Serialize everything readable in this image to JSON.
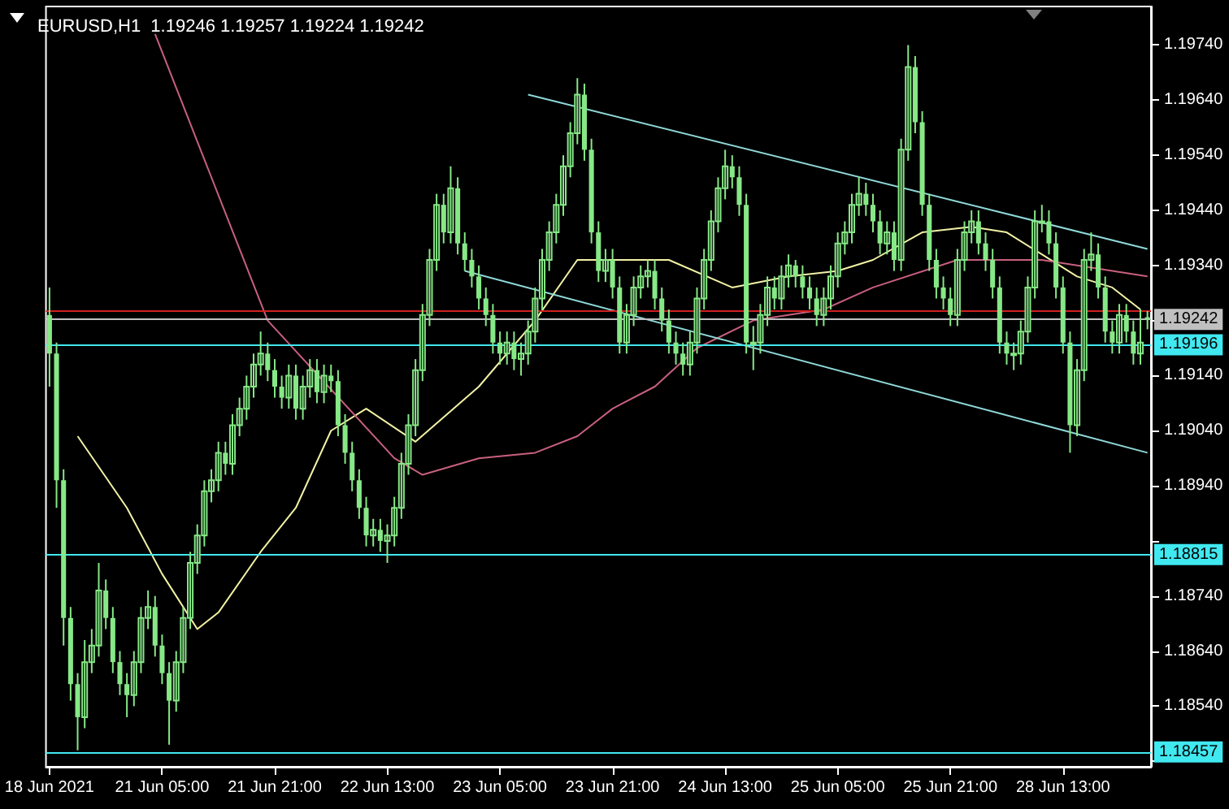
{
  "chart_data": {
    "type": "candlestick",
    "title": "EURUSD,H1  1.19246 1.19257 1.19224 1.19242",
    "color": "#86e886",
    "categories": [
      "18 Jun 2021",
      null,
      null,
      null,
      null,
      null,
      null,
      null,
      null,
      null,
      null,
      null,
      null,
      null,
      null,
      null,
      "21 Jun 05:00",
      null,
      null,
      null,
      null,
      null,
      null,
      null,
      null,
      null,
      null,
      null,
      null,
      null,
      null,
      null,
      "21 Jun 21:00",
      null,
      null,
      null,
      null,
      null,
      null,
      null,
      null,
      null,
      null,
      null,
      null,
      null,
      null,
      null,
      "22 Jun 13:00",
      null,
      null,
      null,
      null,
      null,
      null,
      null,
      null,
      null,
      null,
      null,
      null,
      null,
      null,
      null,
      "23 Jun 05:00",
      null,
      null,
      null,
      null,
      null,
      null,
      null,
      null,
      null,
      null,
      null,
      null,
      null,
      null,
      null,
      "23 Jun 21:00",
      null,
      null,
      null,
      null,
      null,
      null,
      null,
      null,
      null,
      null,
      null,
      null,
      null,
      null,
      null,
      "24 Jun 13:00",
      null,
      null,
      null,
      null,
      null,
      null,
      null,
      null,
      null,
      null,
      null,
      null,
      null,
      null,
      null,
      "25 Jun 05:00",
      null,
      null,
      null,
      null,
      null,
      null,
      null,
      null,
      null,
      null,
      null,
      null,
      null,
      null,
      null,
      "25 Jun 21:00",
      null,
      null,
      null,
      null,
      null,
      null,
      null,
      null,
      null,
      null,
      null,
      null,
      null,
      null,
      null,
      "28 Jun 13:00",
      null,
      null,
      null,
      null,
      null,
      null,
      null,
      null,
      null,
      null,
      null,
      null
    ],
    "ohlc": [
      [
        1.1925,
        1.193,
        1.1912,
        1.1918
      ],
      [
        1.1918,
        1.192,
        1.189,
        1.1895
      ],
      [
        1.1895,
        1.1897,
        1.1865,
        1.187
      ],
      [
        1.187,
        1.1872,
        1.1855,
        1.1858
      ],
      [
        1.1858,
        1.186,
        1.1846,
        1.1852
      ],
      [
        1.1852,
        1.1866,
        1.185,
        1.1862
      ],
      [
        1.1862,
        1.1868,
        1.186,
        1.1865
      ],
      [
        1.1865,
        1.188,
        1.1863,
        1.1875
      ],
      [
        1.1875,
        1.1877,
        1.1868,
        1.187
      ],
      [
        1.187,
        1.1872,
        1.186,
        1.1862
      ],
      [
        1.1862,
        1.1864,
        1.1856,
        1.1858
      ],
      [
        1.1858,
        1.186,
        1.1852,
        1.1856
      ],
      [
        1.1856,
        1.1864,
        1.1854,
        1.1862
      ],
      [
        1.1862,
        1.1872,
        1.186,
        1.187
      ],
      [
        1.187,
        1.1875,
        1.1868,
        1.1872
      ],
      [
        1.1872,
        1.1874,
        1.1863,
        1.1865
      ],
      [
        1.1865,
        1.1867,
        1.1858,
        1.186
      ],
      [
        1.186,
        1.1862,
        1.1847,
        1.1855
      ],
      [
        1.1855,
        1.1864,
        1.1853,
        1.1862
      ],
      [
        1.1862,
        1.1872,
        1.186,
        1.187
      ],
      [
        1.187,
        1.1882,
        1.1868,
        1.188
      ],
      [
        1.188,
        1.1887,
        1.1878,
        1.1885
      ],
      [
        1.1885,
        1.1895,
        1.1883,
        1.1893
      ],
      [
        1.1893,
        1.1897,
        1.1891,
        1.1895
      ],
      [
        1.1895,
        1.1902,
        1.1893,
        1.19
      ],
      [
        1.19,
        1.1902,
        1.1896,
        1.1898
      ],
      [
        1.1898,
        1.1907,
        1.1896,
        1.1905
      ],
      [
        1.1905,
        1.191,
        1.1903,
        1.1908
      ],
      [
        1.1908,
        1.1914,
        1.1906,
        1.1912
      ],
      [
        1.1912,
        1.1918,
        1.191,
        1.1916
      ],
      [
        1.1916,
        1.1922,
        1.1914,
        1.1918
      ],
      [
        1.1918,
        1.192,
        1.1913,
        1.1915
      ],
      [
        1.1915,
        1.1917,
        1.191,
        1.1912
      ],
      [
        1.1912,
        1.1914,
        1.1908,
        1.191
      ],
      [
        1.191,
        1.1916,
        1.1908,
        1.1914
      ],
      [
        1.1914,
        1.1916,
        1.1906,
        1.1908
      ],
      [
        1.1908,
        1.1914,
        1.1906,
        1.1912
      ],
      [
        1.1912,
        1.1917,
        1.191,
        1.1915
      ],
      [
        1.1915,
        1.1917,
        1.1909,
        1.1911
      ],
      [
        1.1911,
        1.1916,
        1.1909,
        1.1914
      ],
      [
        1.1914,
        1.1916,
        1.1911,
        1.1913
      ],
      [
        1.1913,
        1.1915,
        1.1903,
        1.1905
      ],
      [
        1.1905,
        1.1907,
        1.1898,
        1.19
      ],
      [
        1.19,
        1.1902,
        1.1893,
        1.1895
      ],
      [
        1.1895,
        1.1897,
        1.1888,
        1.189
      ],
      [
        1.189,
        1.1892,
        1.1883,
        1.1885
      ],
      [
        1.1885,
        1.1888,
        1.1883,
        1.1886
      ],
      [
        1.1886,
        1.1888,
        1.1882,
        1.1884
      ],
      [
        1.1884,
        1.1887,
        1.188,
        1.1885
      ],
      [
        1.1885,
        1.1892,
        1.1883,
        1.189
      ],
      [
        1.189,
        1.19,
        1.1888,
        1.1898
      ],
      [
        1.1898,
        1.1907,
        1.1896,
        1.1905
      ],
      [
        1.1905,
        1.1917,
        1.1903,
        1.1915
      ],
      [
        1.1915,
        1.1927,
        1.1913,
        1.1925
      ],
      [
        1.1925,
        1.1937,
        1.1923,
        1.1935
      ],
      [
        1.1935,
        1.1947,
        1.1933,
        1.1945
      ],
      [
        1.1945,
        1.1947,
        1.1938,
        1.194
      ],
      [
        1.194,
        1.1952,
        1.1938,
        1.1948
      ],
      [
        1.1948,
        1.195,
        1.1936,
        1.1938
      ],
      [
        1.1938,
        1.194,
        1.1933,
        1.1935
      ],
      [
        1.1935,
        1.1937,
        1.193,
        1.1932
      ],
      [
        1.1932,
        1.1934,
        1.1926,
        1.1928
      ],
      [
        1.1928,
        1.193,
        1.1923,
        1.1925
      ],
      [
        1.1925,
        1.1927,
        1.1918,
        1.192
      ],
      [
        1.192,
        1.1922,
        1.1916,
        1.1918
      ],
      [
        1.1918,
        1.1922,
        1.1916,
        1.192
      ],
      [
        1.192,
        1.1922,
        1.1915,
        1.1917
      ],
      [
        1.1917,
        1.192,
        1.1914,
        1.1918
      ],
      [
        1.1918,
        1.1924,
        1.1916,
        1.1922
      ],
      [
        1.1922,
        1.193,
        1.192,
        1.1928
      ],
      [
        1.1928,
        1.1937,
        1.1926,
        1.1935
      ],
      [
        1.1935,
        1.1942,
        1.1933,
        1.194
      ],
      [
        1.194,
        1.1947,
        1.1938,
        1.1945
      ],
      [
        1.1945,
        1.1954,
        1.1943,
        1.1952
      ],
      [
        1.1952,
        1.196,
        1.195,
        1.1958
      ],
      [
        1.1958,
        1.1968,
        1.1956,
        1.1965
      ],
      [
        1.1965,
        1.1967,
        1.1953,
        1.1955
      ],
      [
        1.1955,
        1.1957,
        1.1938,
        1.194
      ],
      [
        1.194,
        1.1942,
        1.1931,
        1.1933
      ],
      [
        1.1933,
        1.1937,
        1.1931,
        1.1935
      ],
      [
        1.1935,
        1.1937,
        1.1928,
        1.193
      ],
      [
        1.193,
        1.1932,
        1.1918,
        1.192
      ],
      [
        1.192,
        1.1927,
        1.1918,
        1.1925
      ],
      [
        1.1925,
        1.1932,
        1.1923,
        1.193
      ],
      [
        1.193,
        1.1934,
        1.1928,
        1.1932
      ],
      [
        1.1932,
        1.1935,
        1.193,
        1.1933
      ],
      [
        1.1933,
        1.1935,
        1.1926,
        1.1928
      ],
      [
        1.1928,
        1.193,
        1.1922,
        1.1924
      ],
      [
        1.1924,
        1.1926,
        1.1918,
        1.192
      ],
      [
        1.192,
        1.1922,
        1.1916,
        1.1918
      ],
      [
        1.1918,
        1.192,
        1.1914,
        1.1916
      ],
      [
        1.1916,
        1.1922,
        1.1914,
        1.192
      ],
      [
        1.192,
        1.193,
        1.1918,
        1.1928
      ],
      [
        1.1928,
        1.1937,
        1.1926,
        1.1935
      ],
      [
        1.1935,
        1.1944,
        1.1933,
        1.1942
      ],
      [
        1.1942,
        1.195,
        1.194,
        1.1948
      ],
      [
        1.1948,
        1.1955,
        1.1946,
        1.1952
      ],
      [
        1.1952,
        1.1954,
        1.1948,
        1.195
      ],
      [
        1.195,
        1.1952,
        1.1943,
        1.1945
      ],
      [
        1.1945,
        1.1947,
        1.1918,
        1.192
      ],
      [
        1.192,
        1.1923,
        1.1915,
        1.192
      ],
      [
        1.192,
        1.1927,
        1.1918,
        1.1925
      ],
      [
        1.1925,
        1.1932,
        1.1923,
        1.193
      ],
      [
        1.193,
        1.1932,
        1.1926,
        1.1928
      ],
      [
        1.1928,
        1.1934,
        1.1926,
        1.1932
      ],
      [
        1.1932,
        1.1936,
        1.193,
        1.1934
      ],
      [
        1.1934,
        1.1935,
        1.193,
        1.1932
      ],
      [
        1.1932,
        1.1934,
        1.1928,
        1.193
      ],
      [
        1.193,
        1.1932,
        1.1926,
        1.1928
      ],
      [
        1.1928,
        1.193,
        1.1923,
        1.1925
      ],
      [
        1.1925,
        1.193,
        1.1923,
        1.1928
      ],
      [
        1.1928,
        1.1934,
        1.1926,
        1.1932
      ],
      [
        1.1932,
        1.194,
        1.193,
        1.1938
      ],
      [
        1.1938,
        1.1942,
        1.1936,
        1.194
      ],
      [
        1.194,
        1.1947,
        1.1938,
        1.1945
      ],
      [
        1.1945,
        1.195,
        1.1943,
        1.1947
      ],
      [
        1.1947,
        1.1949,
        1.1943,
        1.1945
      ],
      [
        1.1945,
        1.1947,
        1.194,
        1.1942
      ],
      [
        1.1942,
        1.1944,
        1.1936,
        1.1938
      ],
      [
        1.1938,
        1.1942,
        1.1936,
        1.194
      ],
      [
        1.194,
        1.1942,
        1.1933,
        1.1935
      ],
      [
        1.1935,
        1.1957,
        1.1933,
        1.1955
      ],
      [
        1.1955,
        1.1974,
        1.1953,
        1.197
      ],
      [
        1.197,
        1.1972,
        1.1958,
        1.196
      ],
      [
        1.196,
        1.1962,
        1.1943,
        1.1945
      ],
      [
        1.1945,
        1.1947,
        1.1933,
        1.1935
      ],
      [
        1.1935,
        1.1937,
        1.1928,
        1.193
      ],
      [
        1.193,
        1.1932,
        1.1926,
        1.1928
      ],
      [
        1.1928,
        1.193,
        1.1923,
        1.1925
      ],
      [
        1.1925,
        1.1937,
        1.1923,
        1.1935
      ],
      [
        1.1935,
        1.1942,
        1.1933,
        1.194
      ],
      [
        1.194,
        1.1944,
        1.1938,
        1.1942
      ],
      [
        1.1942,
        1.1944,
        1.1936,
        1.1938
      ],
      [
        1.1938,
        1.194,
        1.1933,
        1.1935
      ],
      [
        1.1935,
        1.1937,
        1.1928,
        1.193
      ],
      [
        1.193,
        1.1932,
        1.1918,
        1.192
      ],
      [
        1.192,
        1.1922,
        1.1916,
        1.1918
      ],
      [
        1.1918,
        1.192,
        1.1915,
        1.1918
      ],
      [
        1.1918,
        1.1924,
        1.1916,
        1.1922
      ],
      [
        1.1922,
        1.1932,
        1.192,
        1.193
      ],
      [
        1.193,
        1.1944,
        1.1928,
        1.1942
      ],
      [
        1.1942,
        1.1945,
        1.194,
        1.1942
      ],
      [
        1.1942,
        1.1944,
        1.1936,
        1.1938
      ],
      [
        1.1938,
        1.194,
        1.1928,
        1.193
      ],
      [
        1.193,
        1.1932,
        1.1918,
        1.192
      ],
      [
        1.192,
        1.1922,
        1.19,
        1.1905
      ],
      [
        1.1905,
        1.1917,
        1.1903,
        1.1915
      ],
      [
        1.1915,
        1.1937,
        1.1913,
        1.1935
      ],
      [
        1.1935,
        1.194,
        1.1933,
        1.1936
      ],
      [
        1.1936,
        1.1938,
        1.1928,
        1.193
      ],
      [
        1.193,
        1.1932,
        1.192,
        1.1922
      ],
      [
        1.1922,
        1.1924,
        1.1918,
        1.192
      ],
      [
        1.192,
        1.1927,
        1.1918,
        1.1925
      ],
      [
        1.1925,
        1.1927,
        1.192,
        1.1922
      ],
      [
        1.1922,
        1.1924,
        1.1916,
        1.1918
      ],
      [
        1.1918,
        1.1926,
        1.1916,
        1.192
      ],
      [
        1.19246,
        1.19257,
        1.19224,
        1.19242
      ]
    ],
    "ylim": [
      1.1843,
      1.1981
    ],
    "yticks": [
      {
        "value": 1.1844,
        "label": null
      },
      {
        "value": 1.1854,
        "label": "1.18540"
      },
      {
        "value": 1.1864,
        "label": "1.18640"
      },
      {
        "value": 1.1874,
        "label": "1.18740"
      },
      {
        "value": 1.1884,
        "label": null
      },
      {
        "value": 1.1894,
        "label": "1.18940"
      },
      {
        "value": 1.1904,
        "label": "1.19040"
      },
      {
        "value": 1.1914,
        "label": "1.19140"
      },
      {
        "value": 1.1924,
        "label": null
      },
      {
        "value": 1.1934,
        "label": "1.19340"
      },
      {
        "value": 1.1944,
        "label": "1.19440"
      },
      {
        "value": 1.1954,
        "label": "1.19540"
      },
      {
        "value": 1.1964,
        "label": "1.19640"
      },
      {
        "value": 1.1974,
        "label": "1.19740"
      }
    ],
    "grid": false,
    "series": [
      {
        "type": "line",
        "color": "#f2f2a6",
        "values": [
          null,
          null,
          null,
          null,
          1.1903,
          null,
          null,
          null,
          null,
          null,
          null,
          1.189,
          null,
          null,
          null,
          null,
          1.1878,
          null,
          null,
          null,
          null,
          1.1868,
          null,
          null,
          1.1871,
          null,
          null,
          null,
          null,
          null,
          1.1882,
          null,
          null,
          null,
          null,
          1.189,
          null,
          null,
          null,
          null,
          1.1904,
          null,
          null,
          null,
          null,
          1.1908,
          null,
          null,
          null,
          null,
          null,
          null,
          1.1902,
          null,
          null,
          null,
          null,
          null,
          null,
          null,
          null,
          1.1912,
          null,
          null,
          null,
          null,
          null,
          null,
          null,
          1.1924,
          null,
          null,
          null,
          null,
          null,
          1.1935,
          null,
          null,
          null,
          null,
          null,
          null,
          null,
          1.1935,
          null,
          null,
          null,
          null,
          1.1935,
          null,
          null,
          null,
          null,
          null,
          null,
          null,
          null,
          1.193,
          null,
          null,
          null,
          null,
          null,
          null,
          null,
          1.1932,
          null,
          null,
          null,
          null,
          null,
          null,
          1.1933,
          null,
          null,
          null,
          null,
          1.1935,
          null,
          null,
          null,
          null,
          null,
          null,
          1.194,
          null,
          null,
          null,
          null,
          null,
          null,
          1.1941,
          null,
          null,
          null,
          null,
          1.194,
          null,
          null,
          null,
          null,
          1.1936,
          null,
          null,
          null,
          null,
          1.1932,
          null,
          null,
          null,
          null,
          1.193,
          null,
          null,
          null,
          1.1926,
          null
        ]
      },
      {
        "type": "line",
        "color": "#c8607e",
        "values": [
          null,
          null,
          null,
          null,
          null,
          null,
          null,
          null,
          null,
          null,
          null,
          null,
          null,
          null,
          null,
          1.1976,
          null,
          null,
          null,
          null,
          null,
          null,
          null,
          null,
          null,
          null,
          null,
          null,
          null,
          null,
          null,
          1.1924,
          null,
          null,
          null,
          null,
          null,
          null,
          null,
          null,
          null,
          null,
          null,
          null,
          null,
          null,
          null,
          null,
          null,
          1.1899,
          null,
          null,
          null,
          1.1896,
          null,
          null,
          null,
          null,
          null,
          null,
          null,
          1.1899,
          null,
          null,
          null,
          null,
          null,
          null,
          null,
          1.19,
          null,
          null,
          null,
          null,
          null,
          1.1903,
          null,
          null,
          null,
          null,
          1.1908,
          null,
          null,
          null,
          null,
          null,
          1.1912,
          null,
          null,
          null,
          null,
          null,
          1.1919,
          null,
          null,
          null,
          null,
          null,
          null,
          null,
          1.1924,
          null,
          null,
          null,
          null,
          null,
          null,
          null,
          null,
          null,
          1.1926,
          null,
          null,
          null,
          null,
          null,
          null,
          1.193,
          null,
          null,
          null,
          null,
          null,
          null,
          null,
          null,
          null,
          null,
          null,
          1.1935,
          null,
          null,
          null,
          null,
          null,
          null,
          null,
          null,
          null,
          null,
          null,
          1.1935,
          null,
          null,
          null,
          null,
          null,
          null,
          null,
          null,
          null,
          null,
          null,
          null,
          null,
          null,
          1.1932
        ]
      },
      {
        "type": "line",
        "color": "#8fd8d8",
        "values": [
          null,
          null,
          null,
          null,
          null,
          null,
          null,
          null,
          null,
          null,
          null,
          null,
          null,
          null,
          null,
          null,
          null,
          null,
          null,
          null,
          null,
          null,
          null,
          null,
          null,
          null,
          null,
          null,
          null,
          null,
          null,
          null,
          null,
          null,
          null,
          null,
          null,
          null,
          null,
          null,
          null,
          null,
          null,
          null,
          null,
          null,
          null,
          null,
          null,
          null,
          null,
          null,
          null,
          null,
          null,
          null,
          null,
          null,
          null,
          null,
          null,
          null,
          null,
          null,
          null,
          null,
          null,
          null,
          1.1965,
          null,
          null,
          null,
          null,
          null,
          null,
          null,
          null,
          null,
          null,
          null,
          null,
          null,
          null,
          null,
          null,
          null,
          null,
          null,
          null,
          null,
          null,
          null,
          null,
          null,
          null,
          null,
          null,
          null,
          null,
          null,
          null,
          null,
          null,
          null,
          null,
          null,
          null,
          null,
          null,
          null,
          null,
          null,
          null,
          null,
          null,
          null,
          null,
          null,
          null,
          null,
          null,
          null,
          null,
          null,
          null,
          null,
          null,
          null,
          null,
          null,
          null,
          null,
          null,
          null,
          null,
          null,
          null,
          null,
          null,
          null,
          null,
          null,
          null,
          null,
          null,
          null,
          null,
          null,
          null,
          null,
          null,
          null,
          null,
          null,
          null,
          null,
          1.1937
        ]
      },
      {
        "type": "line",
        "color": "#8fd8d8",
        "values": [
          null,
          null,
          null,
          null,
          null,
          null,
          null,
          null,
          null,
          null,
          null,
          null,
          null,
          null,
          null,
          null,
          null,
          null,
          null,
          null,
          null,
          null,
          null,
          null,
          null,
          null,
          null,
          null,
          null,
          null,
          null,
          null,
          null,
          null,
          null,
          null,
          null,
          null,
          null,
          null,
          null,
          null,
          null,
          null,
          null,
          null,
          null,
          null,
          null,
          null,
          null,
          null,
          null,
          null,
          null,
          null,
          null,
          null,
          null,
          1.1933,
          null,
          null,
          null,
          null,
          null,
          null,
          null,
          null,
          null,
          null,
          null,
          null,
          null,
          null,
          null,
          null,
          null,
          null,
          null,
          null,
          null,
          null,
          null,
          null,
          null,
          null,
          null,
          null,
          null,
          null,
          null,
          null,
          null,
          null,
          null,
          null,
          null,
          null,
          null,
          null,
          null,
          null,
          null,
          null,
          null,
          null,
          null,
          null,
          null,
          null,
          null,
          null,
          null,
          null,
          null,
          null,
          null,
          null,
          null,
          null,
          null,
          null,
          null,
          null,
          null,
          null,
          null,
          null,
          null,
          null,
          null,
          null,
          null,
          null,
          null,
          null,
          null,
          null,
          null,
          null,
          null,
          null,
          null,
          null,
          null,
          null,
          null,
          null,
          null,
          null,
          null,
          null,
          null,
          null,
          null,
          null,
          1.19
        ]
      }
    ],
    "ref_lines": [
      {
        "axis": "y",
        "value": 1.19259,
        "label": null,
        "color": "#d02020"
      },
      {
        "axis": "y",
        "value": 1.19242,
        "label": "1.19242",
        "color": "#c0c0c0"
      },
      {
        "axis": "y",
        "value": 1.19196,
        "label": "1.19196",
        "color": "#40e8f0"
      },
      {
        "axis": "y",
        "value": 1.18815,
        "label": "1.18815",
        "color": "#40e8f0"
      },
      {
        "axis": "y",
        "value": 1.18457,
        "label": "1.18457",
        "color": "#40e8f0"
      }
    ]
  }
}
